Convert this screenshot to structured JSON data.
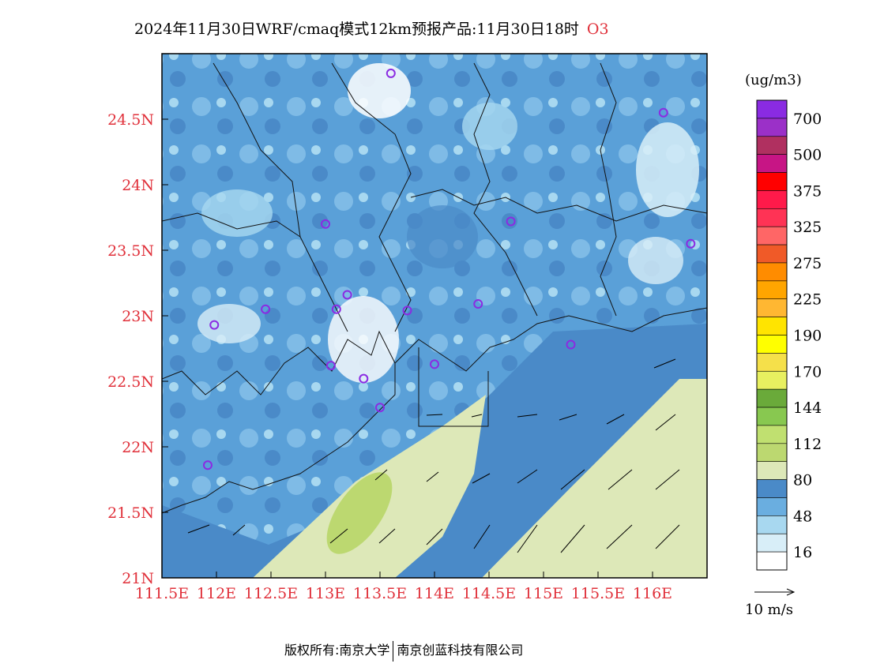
{
  "title": {
    "text": "2024年11月30日WRF/cmaq模式12km预报产品:11月30日18时",
    "species": "O3"
  },
  "colors": {
    "axis_label": "#e0303a",
    "species": "#e0303a",
    "station_marker": "#8b2be2"
  },
  "map": {
    "lat_ticks": [
      "24.5N",
      "24N",
      "23.5N",
      "23N",
      "22.5N",
      "22N",
      "21.5N",
      "21N"
    ],
    "lon_ticks": [
      "111.5E",
      "112E",
      "112.5E",
      "113E",
      "113.5E",
      "114E",
      "114.5E",
      "115E",
      "115.5E",
      "116E"
    ],
    "lat_values": [
      24.5,
      24,
      23.5,
      23,
      22.5,
      22,
      21.5,
      21
    ],
    "lon_values": [
      111.5,
      112,
      112.5,
      113,
      113.5,
      114,
      114.5,
      115,
      115.5,
      116
    ],
    "extent": {
      "lon_min": 111.5,
      "lon_max": 116.5,
      "lat_min": 21.0,
      "lat_max": 25.0
    },
    "stations": [
      {
        "lon": 113.6,
        "lat": 24.85
      },
      {
        "lon": 116.1,
        "lat": 24.55
      },
      {
        "lon": 113.0,
        "lat": 23.7
      },
      {
        "lon": 114.7,
        "lat": 23.72
      },
      {
        "lon": 116.35,
        "lat": 23.55
      },
      {
        "lon": 112.45,
        "lat": 23.05
      },
      {
        "lon": 113.1,
        "lat": 23.05
      },
      {
        "lon": 113.2,
        "lat": 23.16
      },
      {
        "lon": 113.75,
        "lat": 23.04
      },
      {
        "lon": 114.4,
        "lat": 23.09
      },
      {
        "lon": 111.98,
        "lat": 22.93
      },
      {
        "lon": 113.05,
        "lat": 22.62
      },
      {
        "lon": 113.35,
        "lat": 22.52
      },
      {
        "lon": 114.0,
        "lat": 22.63
      },
      {
        "lon": 115.25,
        "lat": 22.78
      },
      {
        "lon": 113.5,
        "lat": 22.3
      },
      {
        "lon": 111.92,
        "lat": 21.86
      }
    ]
  },
  "legend": {
    "unit": "(ug/m3)",
    "labels": [
      "700",
      "500",
      "375",
      "325",
      "275",
      "225",
      "190",
      "170",
      "144",
      "112",
      "80",
      "48",
      "16"
    ],
    "colors": [
      "#8a2be2",
      "#9b30c8",
      "#b03060",
      "#c71585",
      "#ff0000",
      "#ff1a4a",
      "#ff3355",
      "#ff6666",
      "#f05a28",
      "#ff8c00",
      "#ffa500",
      "#ffb732",
      "#ffe400",
      "#ffff00",
      "#f5e04a",
      "#e8f060",
      "#6aaa3a",
      "#88c850",
      "#c0e070",
      "#bcd870",
      "#dde8b8",
      "#4a8ac8",
      "#6aaee0",
      "#a8d8f0",
      "#d8eef8",
      "#ffffff"
    ]
  },
  "wind_reference": {
    "label": "10  m/s"
  },
  "footer": {
    "left": "版权所有:南京大学",
    "right": "南京创蓝科技有限公司"
  }
}
